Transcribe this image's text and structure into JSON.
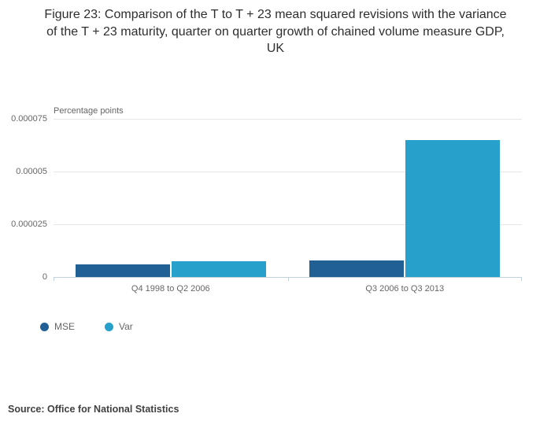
{
  "title": "Figure 23: Comparison of the T to T + 23 mean squared revisions with the variance of the T + 23 maturity, quarter on quarter growth of chained volume measure GDP, UK",
  "source": "Source: Office for National Statistics",
  "chart_data": {
    "type": "bar",
    "title": "Figure 23: Comparison of the T to T + 23 mean squared revisions with the variance of the T + 23 maturity, quarter on quarter growth of chained volume measure GDP, UK",
    "xlabel": "",
    "ylabel": "Percentage points",
    "categories": [
      "Q4 1998 to Q2 2006",
      "Q3 2006 to Q3 2013"
    ],
    "series": [
      {
        "name": "MSE",
        "color": "#206095",
        "values": [
          6e-06,
          8e-06
        ]
      },
      {
        "name": "Var",
        "color": "#27A0CC",
        "values": [
          7.5e-06,
          6.5e-05
        ]
      }
    ],
    "ylim": [
      0,
      7.5e-05
    ],
    "yticks": [
      0,
      2.5e-05,
      5e-05,
      7.5e-05
    ],
    "ytick_labels": [
      "0",
      "0.000025",
      "0.00005",
      "0.000075"
    ],
    "grid": true,
    "legend_position": "bottom-left"
  }
}
